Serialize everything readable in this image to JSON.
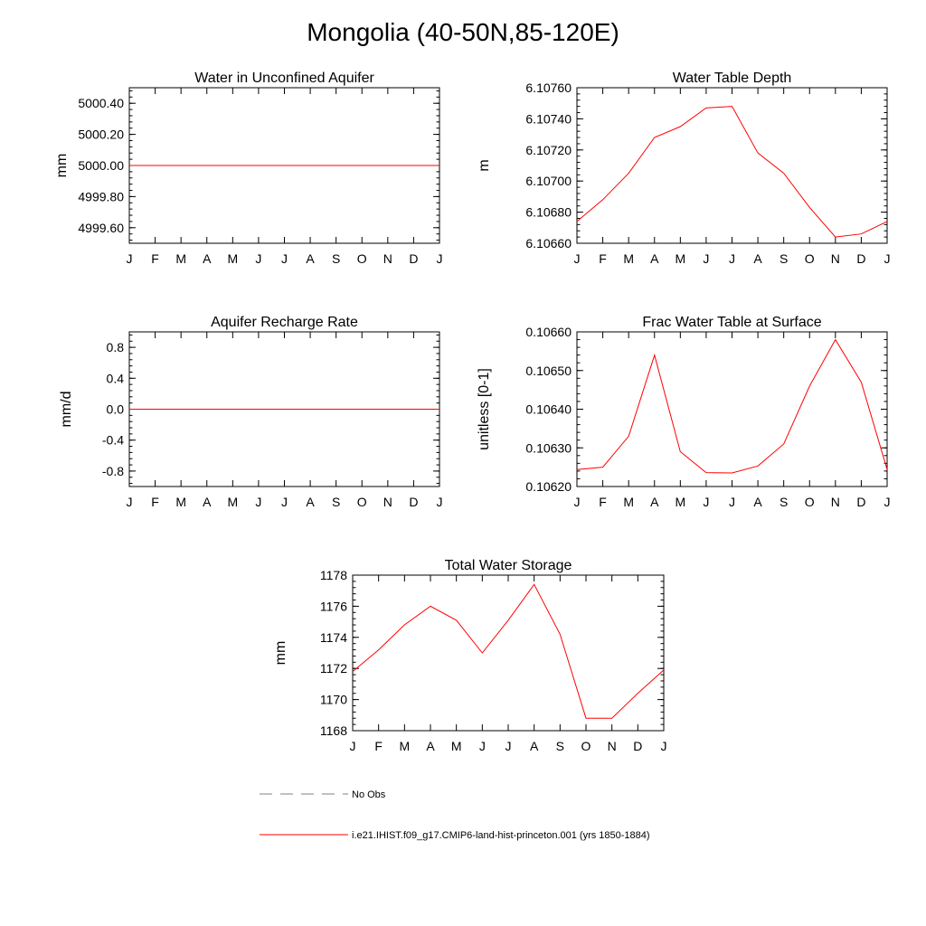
{
  "page_title": "Mongolia (40-50N,85-120E)",
  "months": [
    "J",
    "F",
    "M",
    "A",
    "M",
    "J",
    "J",
    "A",
    "S",
    "O",
    "N",
    "D",
    "J"
  ],
  "colors": {
    "model": "#ff0000",
    "obs": "#808080",
    "axis": "#000000"
  },
  "legend": {
    "obs_label": "No Obs",
    "model_label": "i.e21.IHIST.f09_g17.CMIP6-land-hist-princeton.001 (yrs 1850-1884)"
  },
  "chart_data": [
    {
      "type": "line",
      "title": "Water in Unconfined Aquifer",
      "ylabel": "mm",
      "ylim": [
        4999.5,
        5000.5
      ],
      "yticks": [
        4999.6,
        4999.8,
        5000.0,
        5000.2,
        5000.4
      ],
      "ytick_labels": [
        "4999.60",
        "4999.80",
        "5000.00",
        "5000.20",
        "5000.40"
      ],
      "values": [
        5000,
        5000,
        5000,
        5000,
        5000,
        5000,
        5000,
        5000,
        5000,
        5000,
        5000,
        5000,
        5000
      ]
    },
    {
      "type": "line",
      "title": "Water Table Depth",
      "ylabel": "m",
      "ylim": [
        6.1066,
        6.1076
      ],
      "yticks": [
        6.1066,
        6.1068,
        6.107,
        6.1072,
        6.1074,
        6.1076
      ],
      "ytick_labels": [
        "6.10660",
        "6.10680",
        "6.10700",
        "6.10720",
        "6.10740",
        "6.10760"
      ],
      "values": [
        6.10674,
        6.10688,
        6.10705,
        6.10728,
        6.10735,
        6.10747,
        6.10748,
        6.10718,
        6.10705,
        6.10683,
        6.10664,
        6.10666,
        6.10674
      ]
    },
    {
      "type": "line",
      "title": "Aquifer Recharge Rate",
      "ylabel": "mm/d",
      "ylim": [
        -1.0,
        1.0
      ],
      "yticks": [
        -0.8,
        -0.4,
        0.0,
        0.4,
        0.8
      ],
      "ytick_labels": [
        "-0.8",
        "-0.4",
        "0.0",
        "0.4",
        "0.8"
      ],
      "values": [
        0,
        0,
        0,
        0,
        0,
        0,
        0,
        0,
        0,
        0,
        0,
        0,
        0
      ]
    },
    {
      "type": "line",
      "title": "Frac Water Table at Surface",
      "ylabel": "unitless [0-1]",
      "ylim": [
        0.1062,
        0.1066
      ],
      "yticks": [
        0.1062,
        0.1063,
        0.1064,
        0.1065,
        0.1066
      ],
      "ytick_labels": [
        "0.10620",
        "0.10630",
        "0.10640",
        "0.10650",
        "0.10660"
      ],
      "values": [
        0.106244,
        0.10625,
        0.10633,
        0.10654,
        0.10629,
        0.106236,
        0.106235,
        0.106253,
        0.10631,
        0.10646,
        0.10658,
        0.10647,
        0.106244
      ]
    },
    {
      "type": "line",
      "title": "Total Water Storage",
      "ylabel": "mm",
      "ylim": [
        1168,
        1178
      ],
      "yticks": [
        1168,
        1170,
        1172,
        1174,
        1176,
        1178
      ],
      "ytick_labels": [
        "1168",
        "1170",
        "1172",
        "1174",
        "1176",
        "1178"
      ],
      "values": [
        1171.8,
        1173.2,
        1174.8,
        1176.0,
        1175.1,
        1173.0,
        1175.1,
        1177.4,
        1174.2,
        1168.8,
        1168.8,
        1170.4,
        1171.9
      ]
    }
  ]
}
